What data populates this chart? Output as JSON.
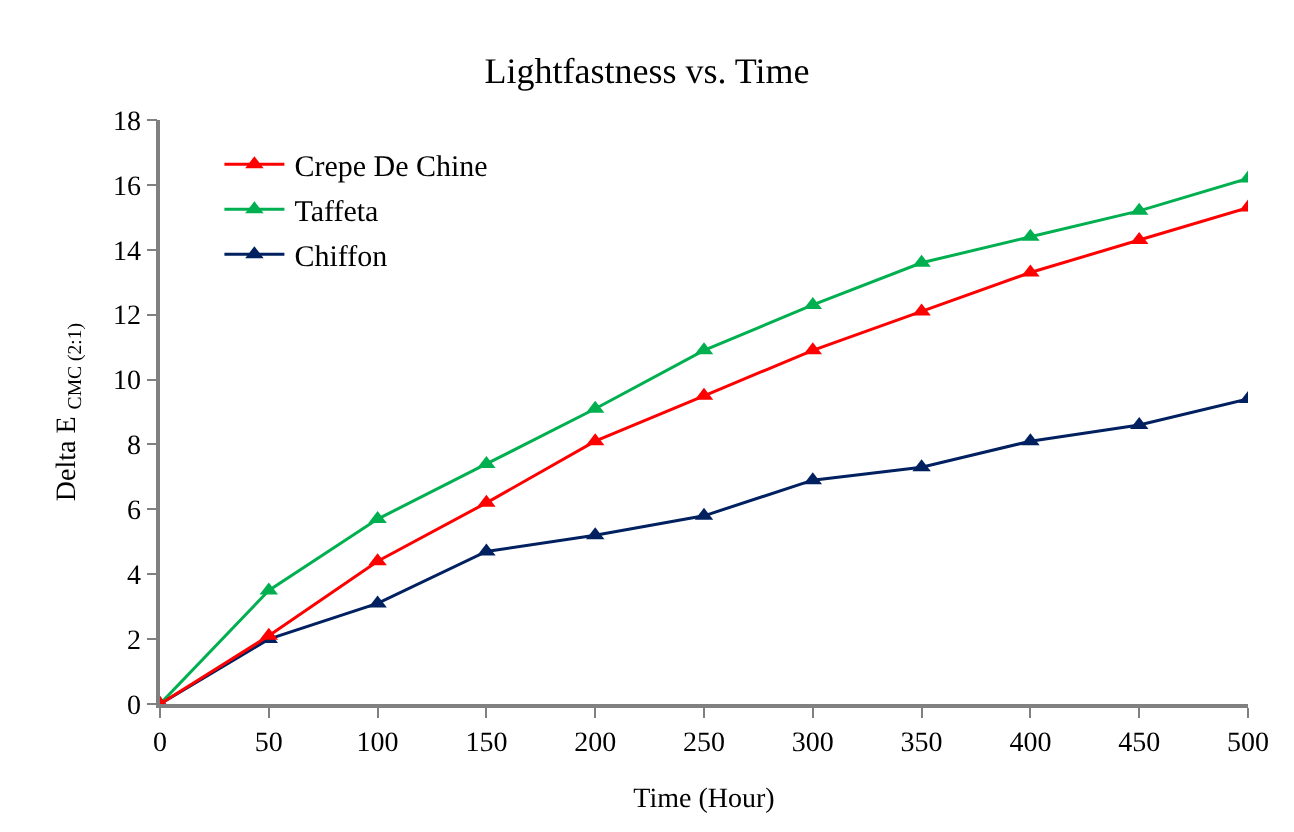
{
  "chart_data": {
    "type": "line",
    "title": "Lightfastness vs. Time",
    "xlabel": "Time (Hour)",
    "ylabel": "Delta E $_{CMC (2:1)}$",
    "x": [
      0,
      50,
      100,
      150,
      200,
      250,
      300,
      350,
      400,
      450,
      500
    ],
    "series": [
      {
        "name": "Crepe De Chine",
        "color": "#ff0000",
        "values": [
          0,
          2.1,
          4.4,
          6.2,
          8.1,
          9.5,
          10.9,
          12.1,
          13.3,
          14.3,
          15.3
        ]
      },
      {
        "name": "Taffeta",
        "color": "#00b050",
        "values": [
          0,
          3.5,
          5.7,
          7.4,
          9.1,
          10.9,
          12.3,
          13.6,
          14.4,
          15.2,
          16.2
        ]
      },
      {
        "name": "Chiffon",
        "color": "#002060",
        "values": [
          0,
          2.0,
          3.1,
          4.7,
          5.2,
          5.8,
          6.9,
          7.3,
          8.1,
          8.6,
          9.4
        ]
      }
    ],
    "xlim": [
      0,
      500
    ],
    "xticks": [
      0,
      50,
      100,
      150,
      200,
      250,
      300,
      350,
      400,
      450,
      500
    ],
    "ylim": [
      0,
      18
    ],
    "yticks": [
      0,
      2,
      4,
      6,
      8,
      10,
      12,
      14,
      16,
      18
    ],
    "grid": false,
    "legend": "top left",
    "marker": "triangle",
    "line_style": "solid"
  }
}
